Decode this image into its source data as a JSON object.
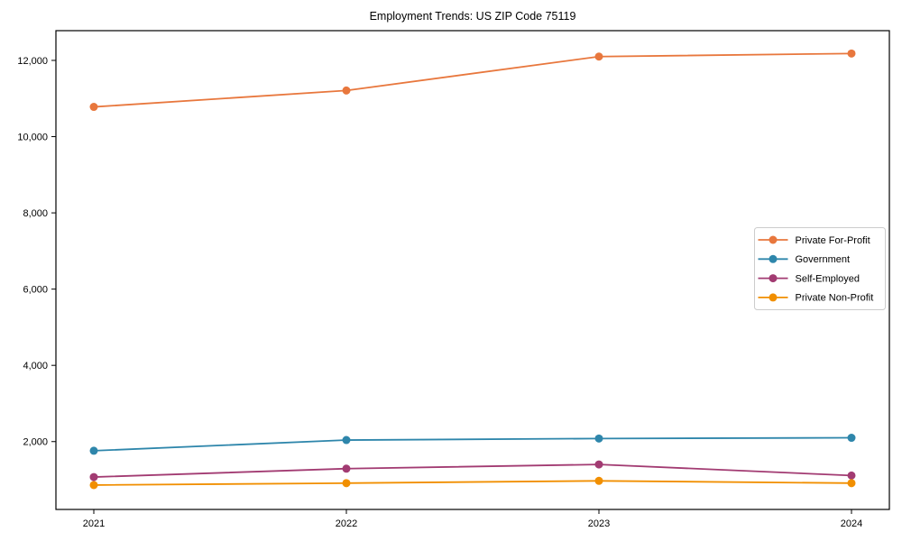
{
  "page": {
    "background": "#ffffff",
    "text_color": "#000000",
    "frame_color": "#000000",
    "legend_border_color": "#cccccc"
  },
  "chart_data": {
    "type": "line",
    "title": "Employment Trends: US ZIP Code 75119",
    "xlabel": "",
    "ylabel": "",
    "categories": [
      "2021",
      "2022",
      "2023",
      "2024"
    ],
    "x": [
      2021,
      2022,
      2023,
      2024
    ],
    "series": [
      {
        "name": "Private For-Profit",
        "color": "#E8773D",
        "values": [
          10780,
          11210,
          12100,
          12180
        ]
      },
      {
        "name": "Government",
        "color": "#2E86AB",
        "values": [
          1760,
          2040,
          2080,
          2100
        ]
      },
      {
        "name": "Self-Employed",
        "color": "#A23B72",
        "values": [
          1070,
          1290,
          1400,
          1110
        ]
      },
      {
        "name": "Private Non-Profit",
        "color": "#F18F01",
        "values": [
          860,
          910,
          970,
          910
        ]
      }
    ],
    "xlim": [
      2020.85,
      2024.15
    ],
    "ylim": [
      220,
      12780
    ],
    "yticks": [
      2000,
      4000,
      6000,
      8000,
      10000,
      12000
    ],
    "ytick_labels": [
      "2,000",
      "4,000",
      "6,000",
      "8,000",
      "10,000",
      "12,000"
    ],
    "grid": false,
    "marker": "circle",
    "legend": {
      "position": "center-right",
      "entries": [
        "Private For-Profit",
        "Government",
        "Self-Employed",
        "Private Non-Profit"
      ]
    }
  }
}
